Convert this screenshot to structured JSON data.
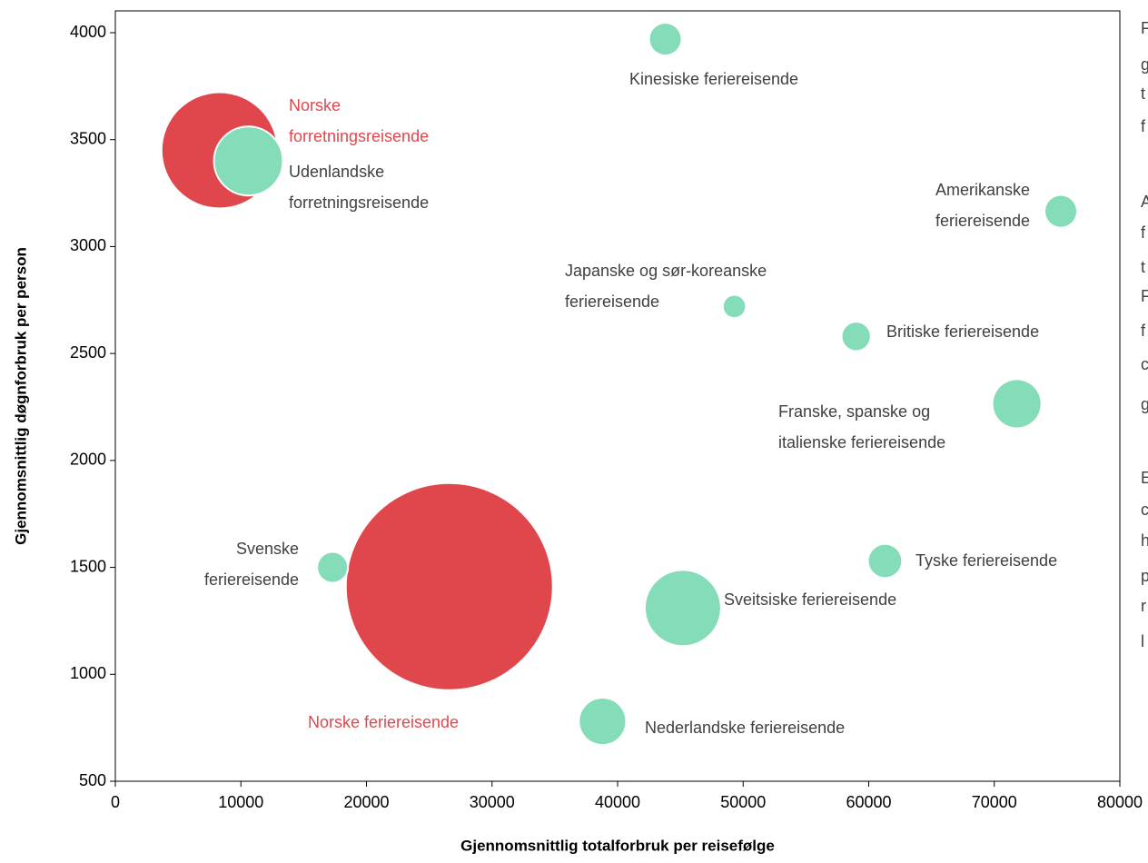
{
  "chart_data": {
    "type": "bubble",
    "xlabel": "Gjennomsnittlig totalforbruk per reisefølge",
    "ylabel": "Gjennomsnittlig døgnforbruk per person",
    "xlim": [
      0,
      80000
    ],
    "xticks": [
      0,
      10000,
      20000,
      30000,
      40000,
      50000,
      60000,
      70000,
      80000
    ],
    "ylim": [
      500,
      4000
    ],
    "yticks": [
      500,
      1000,
      1500,
      2000,
      2500,
      3000,
      3500,
      4000
    ],
    "points": [
      {
        "label": [
          "Kinesiske feriereisende"
        ],
        "x": 43800,
        "y": 3970,
        "size": 29,
        "color": "#84dcb9"
      },
      {
        "label": [
          "Norske",
          "forretningsreisende"
        ],
        "x": 8300,
        "y": 3450,
        "size": 397,
        "color": "#e0474c"
      },
      {
        "label": [
          "Udenlandske",
          "forretningsreisende"
        ],
        "x": 10600,
        "y": 3400,
        "size": 144,
        "color": "#84dcb9"
      },
      {
        "label": [
          "Amerikanske",
          "feriereisende"
        ],
        "x": 75300,
        "y": 3165,
        "size": 29,
        "color": "#84dcb9"
      },
      {
        "label": [
          "Japanske og sør-koreanske",
          "feriereisende"
        ],
        "x": 49300,
        "y": 2720,
        "size": 14,
        "color": "#84dcb9"
      },
      {
        "label": [
          "Britiske feriereisende"
        ],
        "x": 59000,
        "y": 2580,
        "size": 23,
        "color": "#84dcb9"
      },
      {
        "label": [
          "Franske, spanske og",
          "italienske feriereisende"
        ],
        "x": 71800,
        "y": 2265,
        "size": 68,
        "color": "#84dcb9"
      },
      {
        "label": [
          "Norske feriereisende"
        ],
        "x": 26600,
        "y": 1410,
        "size": 1277,
        "color": "#e0474c"
      },
      {
        "label": [
          "Svenske",
          "feriereisende"
        ],
        "x": 17300,
        "y": 1500,
        "size": 29,
        "color": "#84dcb9"
      },
      {
        "label": [
          "Tyske feriereisende"
        ],
        "x": 61300,
        "y": 1530,
        "size": 32,
        "color": "#84dcb9"
      },
      {
        "label": [
          "Sveitsiske feriereisende"
        ],
        "x": 45200,
        "y": 1310,
        "size": 168,
        "color": "#84dcb9"
      },
      {
        "label": [
          "Nederlandske feriereisende"
        ],
        "x": 38800,
        "y": 780,
        "size": 63,
        "color": "#84dcb9"
      }
    ]
  },
  "side_text": [
    "F",
    "g",
    "t",
    "f",
    "A",
    "f",
    "t",
    "F",
    "f",
    "c",
    "g",
    "E",
    "c",
    "h",
    "p",
    "r",
    "l"
  ]
}
